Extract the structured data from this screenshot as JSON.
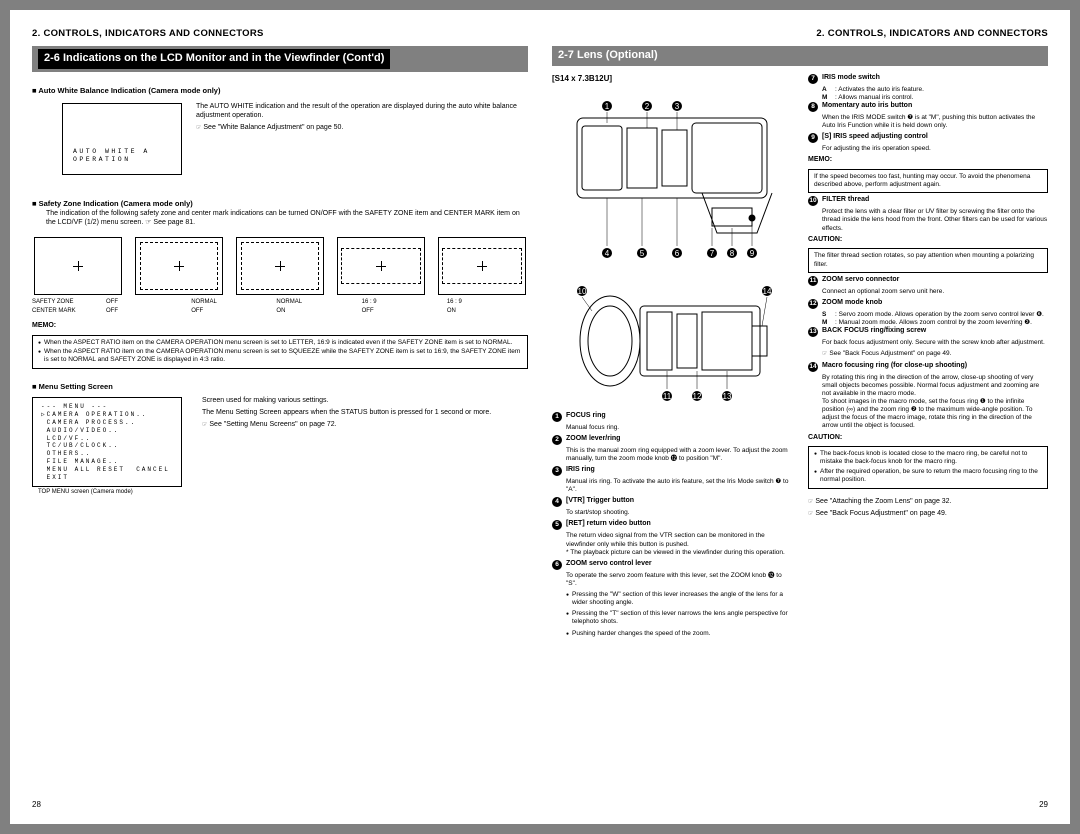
{
  "colors": {
    "page_bg": "#ffffff",
    "surround": "#808080",
    "title_bar_bg": "#808080",
    "title_highlight_bg": "#000000",
    "text": "#000000"
  },
  "left": {
    "header": "2. CONTROLS, INDICATORS AND CONNECTORS",
    "title_prefix": "2-6",
    "title_rest": "Indications on the LCD Monitor and in the Viewfinder (Cont'd)",
    "awb": {
      "heading": "■ Auto White Balance Indication (Camera mode only)",
      "para": "The AUTO WHITE indication and the result of the operation are displayed during the auto white balance adjustment operation.",
      "ref": "See \"White Balance Adjustment\" on page 50.",
      "lcd_line1": "AUTO WHITE A",
      "lcd_line2": "OPERATION"
    },
    "sz": {
      "heading": "■ Safety Zone Indication (Camera mode only)",
      "para": "The indication of the following safety zone and center mark indications can be turned ON/OFF with the SAFETY ZONE item and CENTER MARK item on the LCD/VF (1/2) menu screen. ☞ See page 81.",
      "label_row1": "SAFETY ZONE",
      "label_row2": "CENTER MARK",
      "cols": [
        {
          "sz": "OFF",
          "cm": "OFF"
        },
        {
          "sz": "NORMAL",
          "cm": "OFF"
        },
        {
          "sz": "NORMAL",
          "cm": "ON"
        },
        {
          "sz": "16 : 9",
          "cm": "OFF"
        },
        {
          "sz": "16 : 9",
          "cm": "ON"
        }
      ]
    },
    "memo": {
      "label": "MEMO:",
      "items": [
        "When the ASPECT RATIO item on the CAMERA OPERATION menu screen is set to LETTER, 16:9 is indicated even if the SAFETY ZONE item is set to NORMAL.",
        "When the ASPECT RATIO item on the CAMERA OPERATION menu screen is set to SQUEEZE while the SAFETY ZONE item is set to 16:9, the SAFETY ZONE item is set to NORMAL and SAFETY ZONE is displayed in 4:3 ratio."
      ]
    },
    "menu": {
      "heading": "■ Menu Setting Screen",
      "box": "--- MENU ---\n▷CAMERA OPERATION..\n CAMERA PROCESS..\n AUDIO/VIDEO..\n LCD/VF..\n TC/UB/CLOCK..\n OTHERS..\n FILE MANAGE..\n MENU ALL RESET  CANCEL\n EXIT",
      "caption": "TOP MENU screen (Camera mode)",
      "desc1": "Screen used for making various settings.",
      "desc2": "The Menu Setting Screen appears when the STATUS button is pressed for 1 second or more.",
      "ref": "See \"Setting Menu Screens\" on page 72."
    },
    "pagenum": "28"
  },
  "right": {
    "header": "2. CONTROLS, INDICATORS AND CONNECTORS",
    "title_prefix": "2-7",
    "title_rest": "Lens (Optional)",
    "model": "[S14 x 7.3B12U]",
    "features_left": [
      {
        "n": "1",
        "title": "FOCUS ring",
        "desc": "Manual focus ring."
      },
      {
        "n": "2",
        "title": "ZOOM lever/ring",
        "desc": "This is the manual zoom ring equipped with a zoom lever. To adjust the zoom manually, turn the zoom mode knob ⓬ to position \"M\"."
      },
      {
        "n": "3",
        "title": "IRIS ring",
        "desc": "Manual iris ring. To activate the auto iris feature, set the Iris Mode switch ❼ to \"A\"."
      },
      {
        "n": "4",
        "title": "[VTR] Trigger button",
        "desc": "To start/stop shooting."
      },
      {
        "n": "5",
        "title": "[RET] return video button",
        "desc": "The return video signal from the VTR section can be monitored in the viewfinder only while this button is pushed.\n* The playback picture can be viewed in the viewfinder during this operation."
      },
      {
        "n": "6",
        "title": "ZOOM servo control lever",
        "desc": "To operate the servo zoom feature with this lever, set the ZOOM knob ⓬ to \"S\"."
      }
    ],
    "zoom_bullets": [
      "Pressing the \"W\" section of this lever increases the angle of the lens for a wider shooting angle.",
      "Pressing the \"T\" section of this lever narrows the lens angle perspective for telephoto shots.",
      "Pushing harder changes the speed of the zoom."
    ],
    "features_right": [
      {
        "n": "7",
        "title": "IRIS mode switch",
        "lines": [
          {
            "l": "A",
            "t": ": Activates the auto iris feature."
          },
          {
            "l": "M",
            "t": ": Allows manual iris control."
          }
        ]
      },
      {
        "n": "8",
        "title": "Momentary auto iris button",
        "desc": "When the IRIS MODE switch ❼ is at \"M\", pushing this button activates the Auto Iris Function while it is held down only."
      },
      {
        "n": "9",
        "title": "[S] IRIS speed adjusting control",
        "desc": "For adjusting the iris operation speed."
      }
    ],
    "memo": {
      "label": "MEMO:",
      "text": "If the speed becomes too fast, hunting may occur. To avoid the phenomena described above, perform adjustment again."
    },
    "features_right2": [
      {
        "n": "10",
        "title": "FILTER thread",
        "desc": "Protect the lens with a clear filter or UV filter by screwing the filter onto the thread inside the lens hood from the front. Other filters can be used for various effects."
      }
    ],
    "caution1": {
      "label": "CAUTION:",
      "text": "The filter thread section rotates, so pay attention when mounting a polarizing filter."
    },
    "features_right3": [
      {
        "n": "11",
        "title": "ZOOM servo connector",
        "desc": "Connect an optional zoom servo unit here."
      },
      {
        "n": "12",
        "title": "ZOOM mode knob",
        "lines": [
          {
            "l": "S",
            "t": ": Servo zoom mode. Allows operation by the zoom servo control lever ❻."
          },
          {
            "l": "M",
            "t": ": Manual zoom mode. Allows zoom control by the zoom lever/ring ❷."
          }
        ]
      },
      {
        "n": "13",
        "title": "BACK FOCUS ring/fixing screw",
        "desc": "For back focus adjustment only. Secure with the screw knob after adjustment.",
        "ref": "See \"Back Focus Adjustment\" on page 49."
      },
      {
        "n": "14",
        "title": "Macro focusing ring (for close-up shooting)",
        "desc": "By rotating this ring in the direction of the arrow, close-up shooting of very small objects becomes possible. Normal focus adjustment and zooming are not available in the macro mode.\nTo shoot images in the macro mode, set the focus ring ❶ to the infinite position (∞) and the zoom ring ❷ to the maximum wide-angle position. To adjust the focus of the macro image, rotate this ring in the direction of the arrow until the object is focused."
      }
    ],
    "caution2": {
      "label": "CAUTION:",
      "items": [
        "The back-focus knob is located close to the macro ring, be careful not to mistake the back-focus knob for the macro ring.",
        "After the required operation, be sure to return the macro focusing ring to the normal position."
      ]
    },
    "refs": [
      "See \"Attaching the Zoom Lens\" on page 32.",
      "See \"Back Focus Adjustment\" on page 49."
    ],
    "pagenum": "29"
  }
}
